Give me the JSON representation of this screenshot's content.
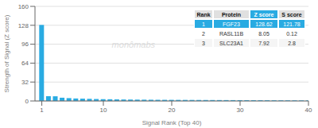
{
  "chart_data": {
    "type": "bar",
    "xlabel": "Signal Rank (Top 40)",
    "ylabel": "Strength of Signal (Z score)",
    "annotations": [
      "monômabs"
    ],
    "x": [
      1,
      2,
      3,
      4,
      5,
      6,
      7,
      8,
      9,
      10,
      11,
      12,
      13,
      14,
      15,
      16,
      17,
      18,
      19,
      20,
      21,
      22,
      23,
      24,
      25,
      26,
      27,
      28,
      29,
      30,
      31,
      32,
      33,
      34,
      35,
      36,
      37,
      38,
      39,
      40
    ],
    "values": [
      128.62,
      8.05,
      7.92,
      5.5,
      4.8,
      4.2,
      3.9,
      3.6,
      3.3,
      3.1,
      2.9,
      2.7,
      2.5,
      2.4,
      2.3,
      2.2,
      2.1,
      2.0,
      1.95,
      1.9,
      1.85,
      1.8,
      1.75,
      1.7,
      1.65,
      1.6,
      1.55,
      1.5,
      1.45,
      1.4,
      1.35,
      1.3,
      1.25,
      1.2,
      1.15,
      1.1,
      1.05,
      1.0,
      0.95,
      0.9
    ],
    "color": "#29abe2",
    "xlim": [
      0,
      40
    ],
    "xticks": [
      1,
      10,
      20,
      30,
      40
    ],
    "ylim": [
      0,
      160
    ],
    "yticks": [
      0,
      32,
      64,
      96,
      128,
      160
    ],
    "grid": true,
    "table": {
      "headers": [
        "Rank",
        "Protein",
        "Z score",
        "S score"
      ],
      "rows": [
        [
          "1",
          "FGF23",
          "128.62",
          "121.78"
        ],
        [
          "2",
          "RASL11B",
          "8.05",
          "0.12"
        ],
        [
          "3",
          "SLC23A1",
          "7.92",
          "2.8"
        ]
      ]
    }
  }
}
